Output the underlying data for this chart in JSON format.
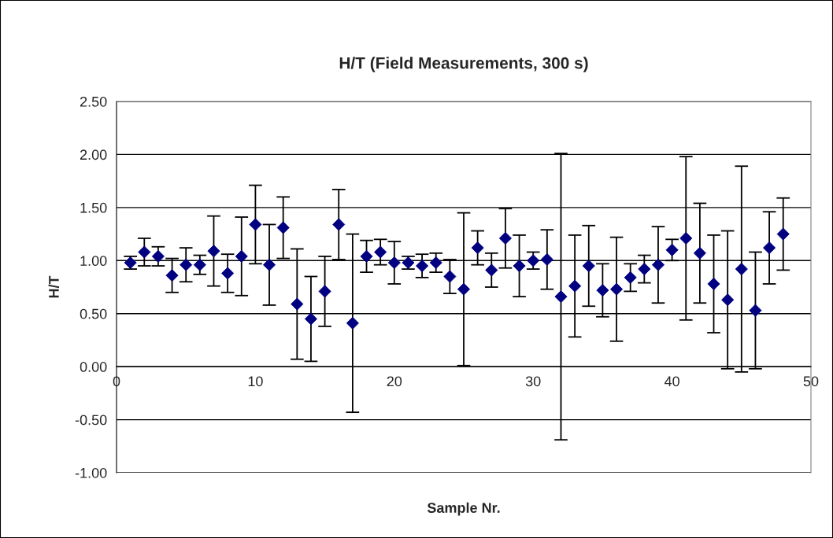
{
  "chart_data": {
    "type": "scatter",
    "title": "H/T (Field Measurements, 300 s)",
    "xlabel": "Sample Nr.",
    "ylabel": "H/T",
    "x": [
      1,
      2,
      3,
      4,
      5,
      6,
      7,
      8,
      9,
      10,
      11,
      12,
      13,
      14,
      15,
      16,
      17,
      18,
      19,
      20,
      21,
      22,
      23,
      24,
      25,
      26,
      27,
      28,
      29,
      30,
      31,
      32,
      33,
      34,
      35,
      36,
      37,
      38,
      39,
      40,
      41,
      42,
      43,
      44,
      45,
      46,
      47,
      48
    ],
    "series": [
      {
        "color": "#000080",
        "values": [
          0.98,
          1.08,
          1.04,
          0.86,
          0.96,
          0.96,
          1.09,
          0.88,
          1.04,
          1.34,
          0.96,
          1.31,
          0.59,
          0.45,
          0.71,
          1.34,
          0.41,
          1.04,
          1.08,
          0.98,
          0.98,
          0.95,
          0.98,
          0.85,
          0.73,
          1.12,
          0.91,
          1.21,
          0.95,
          1.0,
          1.01,
          0.66,
          0.76,
          0.95,
          0.72,
          0.73,
          0.84,
          0.92,
          0.96,
          1.1,
          1.21,
          1.07,
          0.78,
          0.63,
          0.92,
          0.53,
          1.12,
          1.25
        ],
        "errors": [
          0.06,
          0.13,
          0.09,
          0.16,
          0.16,
          0.09,
          0.33,
          0.18,
          0.37,
          0.37,
          0.38,
          0.29,
          0.52,
          0.4,
          0.33,
          0.33,
          0.84,
          0.15,
          0.12,
          0.2,
          0.06,
          0.11,
          0.09,
          0.16,
          0.72,
          0.16,
          0.16,
          0.28,
          0.29,
          0.08,
          0.28,
          1.35,
          0.48,
          0.38,
          0.25,
          0.49,
          0.13,
          0.13,
          0.36,
          0.1,
          0.77,
          0.47,
          0.46,
          0.65,
          0.97,
          0.55,
          0.34,
          0.34
        ]
      }
    ],
    "xlim": [
      0,
      50
    ],
    "xticks": [
      0,
      10,
      20,
      30,
      40,
      50
    ],
    "ylim": [
      -1.0,
      2.5
    ],
    "yticks": [
      {
        "value": -1.0,
        "label": "-1.00"
      },
      {
        "value": -0.5,
        "label": "-0.50"
      },
      {
        "value": 0,
        "label": "0.00"
      },
      {
        "value": 0.5,
        "label": "0.50"
      },
      {
        "value": 1.0,
        "label": "1.00"
      },
      {
        "value": 1.5,
        "label": "1.50"
      },
      {
        "value": 2.0,
        "label": "2.00"
      },
      {
        "value": 2.5,
        "label": "2.50"
      }
    ],
    "grid": "y",
    "marker": "diamond"
  }
}
